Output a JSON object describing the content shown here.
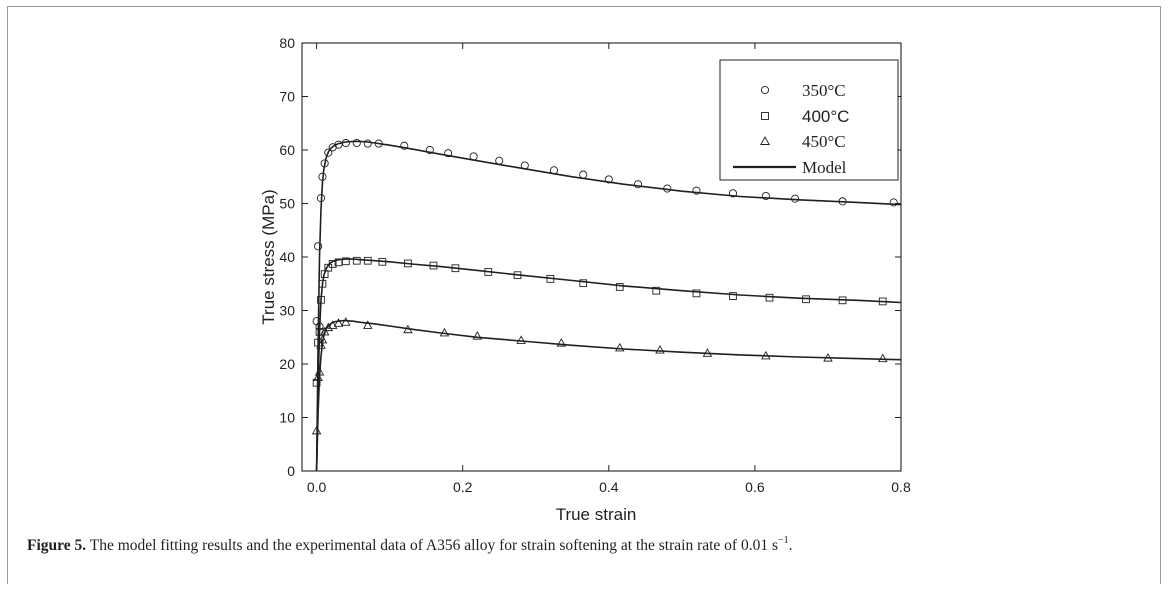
{
  "figure": {
    "caption_label": "Figure 5.",
    "caption_text": " The model fitting results and the experimental data of A356 alloy for strain softening at the strain rate of 0.01 s",
    "caption_exponent": "−1",
    "caption_end": "."
  },
  "chart_data": {
    "type": "scatter",
    "title": "",
    "xlabel": "True strain",
    "ylabel": "True stress (MPa)",
    "xlim": [
      -0.02,
      0.8
    ],
    "ylim": [
      0,
      80
    ],
    "xticks": [
      0.0,
      0.2,
      0.4,
      0.6,
      0.8
    ],
    "xtick_labels": [
      "0.0",
      "0.2",
      "0.4",
      "0.6",
      "0.8"
    ],
    "yticks": [
      0,
      10,
      20,
      30,
      40,
      50,
      60,
      70,
      80
    ],
    "ytick_labels": [
      "0",
      "10",
      "20",
      "30",
      "40",
      "50",
      "60",
      "70",
      "80"
    ],
    "grid": false,
    "legend_position": "top-right",
    "series": [
      {
        "name": "350°C",
        "marker": "circle",
        "x": [
          0.0,
          0.002,
          0.004,
          0.006,
          0.008,
          0.011,
          0.016,
          0.022,
          0.03,
          0.04,
          0.055,
          0.07,
          0.085,
          0.12,
          0.155,
          0.18,
          0.215,
          0.25,
          0.285,
          0.325,
          0.365,
          0.4,
          0.44,
          0.48,
          0.52,
          0.57,
          0.615,
          0.655,
          0.72,
          0.79
        ],
        "y": [
          28,
          42,
          27,
          51,
          55,
          57.5,
          59.5,
          60.5,
          61,
          61.3,
          61.3,
          61.2,
          61.2,
          60.8,
          60,
          59.4,
          58.8,
          58,
          57.1,
          56.2,
          55.4,
          54.5,
          53.6,
          52.8,
          52.4,
          51.9,
          51.4,
          50.9,
          50.4,
          50.2
        ]
      },
      {
        "name": "400°C",
        "marker": "square",
        "x": [
          0.0,
          0.002,
          0.004,
          0.006,
          0.008,
          0.011,
          0.016,
          0.022,
          0.03,
          0.04,
          0.055,
          0.07,
          0.09,
          0.125,
          0.16,
          0.19,
          0.235,
          0.275,
          0.32,
          0.365,
          0.415,
          0.465,
          0.52,
          0.57,
          0.62,
          0.67,
          0.72,
          0.775
        ],
        "y": [
          16.5,
          24,
          26,
          32,
          35,
          36.8,
          38,
          38.7,
          39,
          39.2,
          39.3,
          39.3,
          39.1,
          38.8,
          38.4,
          37.9,
          37.2,
          36.6,
          35.9,
          35.1,
          34.4,
          33.7,
          33.2,
          32.7,
          32.4,
          32.1,
          31.9,
          31.7
        ]
      },
      {
        "name": "450°C",
        "marker": "triangle",
        "x": [
          0.0,
          0.002,
          0.004,
          0.006,
          0.008,
          0.011,
          0.016,
          0.022,
          0.03,
          0.04,
          0.07,
          0.125,
          0.175,
          0.22,
          0.28,
          0.335,
          0.415,
          0.47,
          0.535,
          0.615,
          0.7,
          0.775
        ],
        "y": [
          7.5,
          17.5,
          18.5,
          23.5,
          24.5,
          26,
          26.8,
          27.2,
          27.6,
          27.8,
          27.2,
          26.4,
          25.8,
          25.2,
          24.4,
          23.9,
          23,
          22.6,
          22,
          21.5,
          21.1,
          21
        ]
      },
      {
        "name": "Model",
        "marker": "line",
        "curves": [
          {
            "x": [
              0.0,
              0.002,
              0.004,
              0.006,
              0.008,
              0.01,
              0.013,
              0.016,
              0.02,
              0.025,
              0.03,
              0.04,
              0.05,
              0.06,
              0.07,
              0.08,
              0.1,
              0.13,
              0.17,
              0.22,
              0.28,
              0.35,
              0.42,
              0.5,
              0.58,
              0.66,
              0.74,
              0.8
            ],
            "y": [
              0,
              24,
              40,
              49,
              54,
              56.5,
              58.5,
              59.6,
              60.4,
              60.9,
              61.2,
              61.5,
              61.6,
              61.6,
              61.5,
              61.3,
              60.9,
              60.2,
              59.2,
              58,
              56.6,
              55,
              53.6,
              52.3,
              51.3,
              50.7,
              50.2,
              49.8
            ]
          },
          {
            "x": [
              0.0,
              0.002,
              0.004,
              0.006,
              0.008,
              0.01,
              0.013,
              0.016,
              0.02,
              0.025,
              0.03,
              0.04,
              0.05,
              0.06,
              0.07,
              0.08,
              0.1,
              0.13,
              0.17,
              0.22,
              0.28,
              0.35,
              0.42,
              0.5,
              0.58,
              0.66,
              0.74,
              0.8
            ],
            "y": [
              0,
              16,
              26,
              32,
              35,
              36.6,
              37.8,
              38.5,
              39,
              39.3,
              39.5,
              39.6,
              39.6,
              39.5,
              39.4,
              39.3,
              39.1,
              38.7,
              38.2,
              37.5,
              36.6,
              35.6,
              34.6,
              33.7,
              32.9,
              32.3,
              31.9,
              31.5
            ]
          },
          {
            "x": [
              0.0,
              0.002,
              0.004,
              0.006,
              0.008,
              0.01,
              0.013,
              0.016,
              0.02,
              0.025,
              0.03,
              0.035,
              0.04,
              0.05,
              0.06,
              0.08,
              0.1,
              0.13,
              0.17,
              0.22,
              0.28,
              0.35,
              0.42,
              0.5,
              0.58,
              0.66,
              0.74,
              0.8
            ],
            "y": [
              0,
              11,
              17.5,
              21.5,
              24,
              25.4,
              26.5,
              27.1,
              27.6,
              27.9,
              28,
              28.1,
              28.1,
              28,
              27.8,
              27.5,
              27.1,
              26.5,
              25.8,
              25,
              24.3,
              23.5,
              22.8,
              22.2,
              21.7,
              21.3,
              21,
              20.8
            ]
          }
        ]
      }
    ]
  }
}
